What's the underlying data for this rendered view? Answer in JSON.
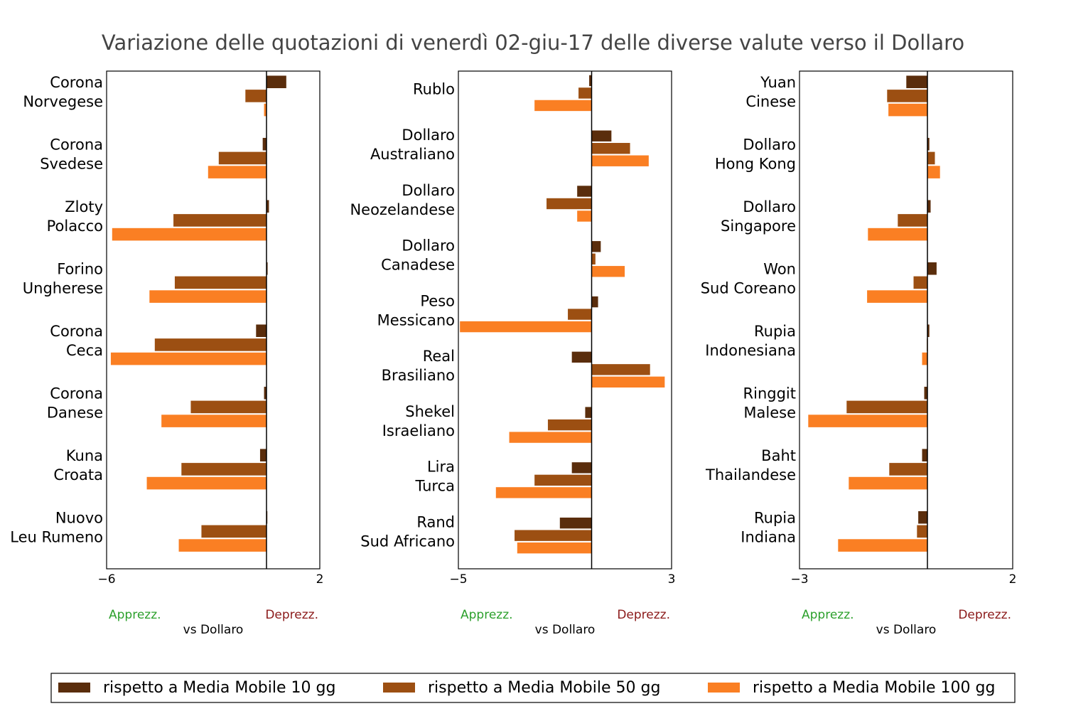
{
  "title": "Variazione delle quotazioni di venerdì 02-giu-17 delle diverse valute verso il Dollaro",
  "colors": {
    "series_0": "#5a2d0c",
    "series_1": "#9c4f12",
    "series_2": "#fa7f23",
    "apprezz": "#2ca02c",
    "deprezz": "#8b1a1a"
  },
  "chart_data": [
    {
      "type": "bar",
      "orientation": "horizontal",
      "categories": [
        "Corona\nNorvegese",
        "Corona\nSvedese",
        "Zloty\nPolacco",
        "Forino\nUngherese",
        "Corona\nCeca",
        "Corona\nDanese",
        "Kuna\nCroata",
        "Nuovo\nLeu Rumeno"
      ],
      "series": [
        {
          "name": "rispetto a Media Mobile 10 gg",
          "values": [
            0.75,
            -0.15,
            0.1,
            0.05,
            -0.4,
            -0.1,
            -0.25,
            0.02
          ]
        },
        {
          "name": "rispetto a Media Mobile 50 gg",
          "values": [
            -0.8,
            -1.8,
            -3.5,
            -3.45,
            -4.2,
            -2.85,
            -3.2,
            -2.45
          ]
        },
        {
          "name": "rispetto a Media Mobile 100 gg",
          "values": [
            -0.1,
            -2.2,
            -5.8,
            -4.4,
            -5.85,
            -3.95,
            -4.5,
            -3.3
          ]
        }
      ],
      "xlim": [
        -6,
        2
      ],
      "xticks": [
        "−6",
        "2"
      ],
      "xlabel": "vs Dollaro",
      "left_label": "Apprezz.",
      "right_label": "Deprezz."
    },
    {
      "type": "bar",
      "orientation": "horizontal",
      "categories": [
        "Rublo",
        "Dollaro\nAustraliano",
        "Dollaro\nNeozelandese",
        "Dollaro\nCanadese",
        "Peso\nMessicano",
        "Real\nBrasiliano",
        "Shekel\nIsraeliano",
        "Lira\nTurca",
        "Rand\nSud Africano"
      ],
      "series": [
        {
          "name": "rispetto a Media Mobile 10 gg",
          "values": [
            -0.1,
            0.75,
            -0.55,
            0.35,
            0.25,
            -0.75,
            -0.25,
            -0.75,
            -1.2
          ]
        },
        {
          "name": "rispetto a Media Mobile 50 gg",
          "values": [
            -0.5,
            1.45,
            -1.7,
            0.15,
            -0.9,
            2.2,
            -1.65,
            -2.15,
            -2.9
          ]
        },
        {
          "name": "rispetto a Media Mobile 100 gg",
          "values": [
            -2.15,
            2.15,
            -0.55,
            1.25,
            -4.95,
            2.75,
            -3.1,
            -3.6,
            -2.8
          ]
        }
      ],
      "xlim": [
        -5,
        3
      ],
      "xticks": [
        "−5",
        "3"
      ],
      "xlabel": "vs Dollaro",
      "left_label": "Apprezz.",
      "right_label": "Deprezz."
    },
    {
      "type": "bar",
      "orientation": "horizontal",
      "categories": [
        "Yuan\nCinese",
        "Dollaro\nHong Kong",
        "Dollaro\nSingapore",
        "Won\nSud Coreano",
        "Rupia\nIndonesiana",
        "Ringgit\nMalese",
        "Baht\nThailandese",
        "Rupia\nIndiana"
      ],
      "series": [
        {
          "name": "rispetto a Media Mobile 10 gg",
          "values": [
            -0.5,
            0.05,
            0.08,
            0.22,
            0.05,
            -0.08,
            -0.13,
            -0.22
          ]
        },
        {
          "name": "rispetto a Media Mobile 50 gg",
          "values": [
            -0.95,
            0.18,
            -0.7,
            -0.33,
            -0.02,
            -1.9,
            -0.9,
            -0.25
          ]
        },
        {
          "name": "rispetto a Media Mobile 100 gg",
          "values": [
            -0.92,
            0.3,
            -1.4,
            -1.42,
            -0.13,
            -2.8,
            -1.85,
            -2.1
          ]
        }
      ],
      "xlim": [
        -3,
        2
      ],
      "xticks": [
        "−3",
        "2"
      ],
      "xlabel": "vs Dollaro",
      "left_label": "Apprezz.",
      "right_label": "Deprezz."
    }
  ],
  "legend": {
    "placement": "bottom",
    "items": [
      "rispetto a Media Mobile 10 gg",
      "rispetto a Media Mobile 50 gg",
      "rispetto a Media Mobile 100 gg"
    ]
  }
}
